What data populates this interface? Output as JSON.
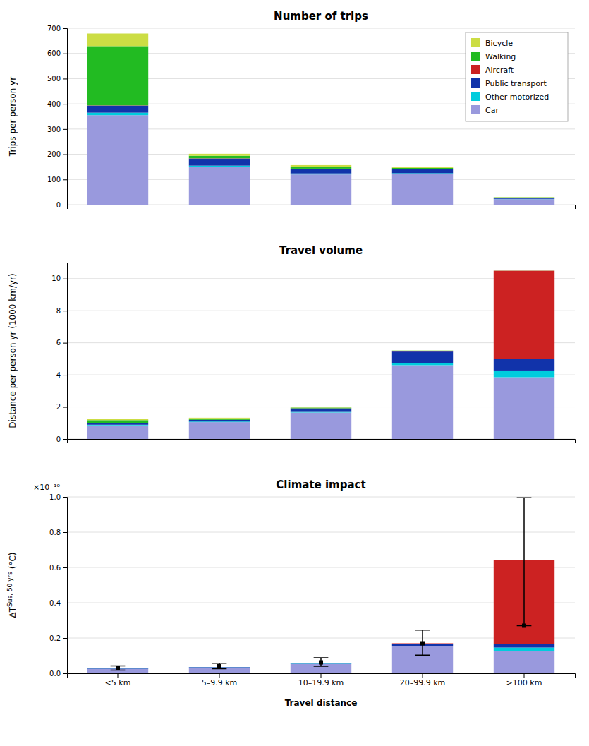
{
  "chart_data": [
    {
      "type": "bar",
      "stacked": true,
      "title": "Number of trips",
      "y_label": "Trips per person yr",
      "categories": [
        "<5 km",
        "5–9.9 km",
        "10–19.9 km",
        "20–99.9 km",
        ">100 km"
      ],
      "series": [
        {
          "name": "Car",
          "color": "#9999dd",
          "values": [
            355,
            150,
            120,
            122,
            22
          ]
        },
        {
          "name": "Other motorized",
          "color": "#00ccdd",
          "values": [
            10,
            5,
            4,
            3,
            1
          ]
        },
        {
          "name": "Public transport",
          "color": "#1133aa",
          "values": [
            28,
            28,
            18,
            16,
            4
          ]
        },
        {
          "name": "Aircraft",
          "color": "#cc2222",
          "values": [
            1,
            1,
            1,
            1,
            0
          ]
        },
        {
          "name": "Walking",
          "color": "#22bb22",
          "values": [
            235,
            10,
            8,
            4,
            2
          ]
        },
        {
          "name": "Bicycle",
          "color": "#ccdd44",
          "values": [
            50,
            8,
            6,
            3,
            1
          ]
        }
      ],
      "ylim": [
        0,
        700
      ],
      "yticks": [
        0,
        100,
        200,
        300,
        400,
        500,
        600,
        700
      ],
      "grid": true,
      "legend": "upper right",
      "tick_labels": "y"
    },
    {
      "type": "bar",
      "stacked": true,
      "title": "Travel volume",
      "y_label": "Distance per person yr (1000 km/yr)",
      "categories": [
        "<5 km",
        "5–9.9 km",
        "10–19.9 km",
        "20–99.9 km",
        ">100 km"
      ],
      "series": [
        {
          "color": "#9999dd",
          "values": [
            0.85,
            1.05,
            1.65,
            4.6,
            3.85
          ]
        },
        {
          "color": "#00ccdd",
          "values": [
            0.04,
            0.04,
            0.04,
            0.13,
            0.42
          ]
        },
        {
          "color": "#1133aa",
          "values": [
            0.1,
            0.1,
            0.22,
            0.72,
            0.72
          ]
        },
        {
          "color": "#cc2222",
          "values": [
            0.005,
            0.005,
            0.005,
            0.04,
            5.5
          ]
        },
        {
          "color": "#22bb22",
          "values": [
            0.18,
            0.09,
            0.04,
            0.02,
            0.005
          ]
        },
        {
          "color": "#ccdd44",
          "values": [
            0.06,
            0.04,
            0.015,
            0.008,
            0.003
          ]
        }
      ],
      "ylim": [
        0,
        11
      ],
      "yticks": [
        0,
        2,
        4,
        6,
        8,
        10
      ],
      "grid": true,
      "tick_labels": "y"
    },
    {
      "type": "bar",
      "stacked": true,
      "title": "Climate impact",
      "y_label": [
        "ΔT",
        "Sus, 50 yrs",
        " (°C)"
      ],
      "x_label": "Travel distance",
      "annotation": "×10⁻¹⁰",
      "categories": [
        "<5 km",
        "5–9.9 km",
        "10–19.9 km",
        "20–99.9 km",
        ">100 km"
      ],
      "series": [
        {
          "color": "#9999dd",
          "values": [
            0.025,
            0.033,
            0.053,
            0.152,
            0.128
          ]
        },
        {
          "color": "#00ccdd",
          "values": [
            0.001,
            0.001,
            0.002,
            0.004,
            0.018
          ]
        },
        {
          "color": "#1133aa",
          "values": [
            0.002,
            0.002,
            0.004,
            0.01,
            0.018
          ]
        },
        {
          "color": "#cc2222",
          "values": [
            0.0,
            0.0,
            0.001,
            0.004,
            0.48
          ]
        },
        {
          "color": "#22bb22",
          "values": [
            0.0,
            0.0,
            0.0,
            0.0,
            0.0
          ]
        },
        {
          "color": "#ccdd44",
          "values": [
            0.0,
            0.0,
            0.0,
            0.0,
            0.0
          ]
        }
      ],
      "error_bars": {
        "lower": [
          0.018,
          0.026,
          0.04,
          0.103,
          0.27
        ],
        "upper": [
          0.042,
          0.057,
          0.088,
          0.245,
          0.995
        ],
        "center": [
          0.028,
          0.04,
          0.062,
          0.17,
          0.27
        ]
      },
      "ylim": [
        0,
        1.0
      ],
      "yticks": [
        {
          "value": 0,
          "label": "0.0"
        },
        0.2,
        0.4,
        0.6,
        0.8,
        {
          "value": 1.0,
          "label": "1.0"
        }
      ],
      "grid": true
    }
  ]
}
